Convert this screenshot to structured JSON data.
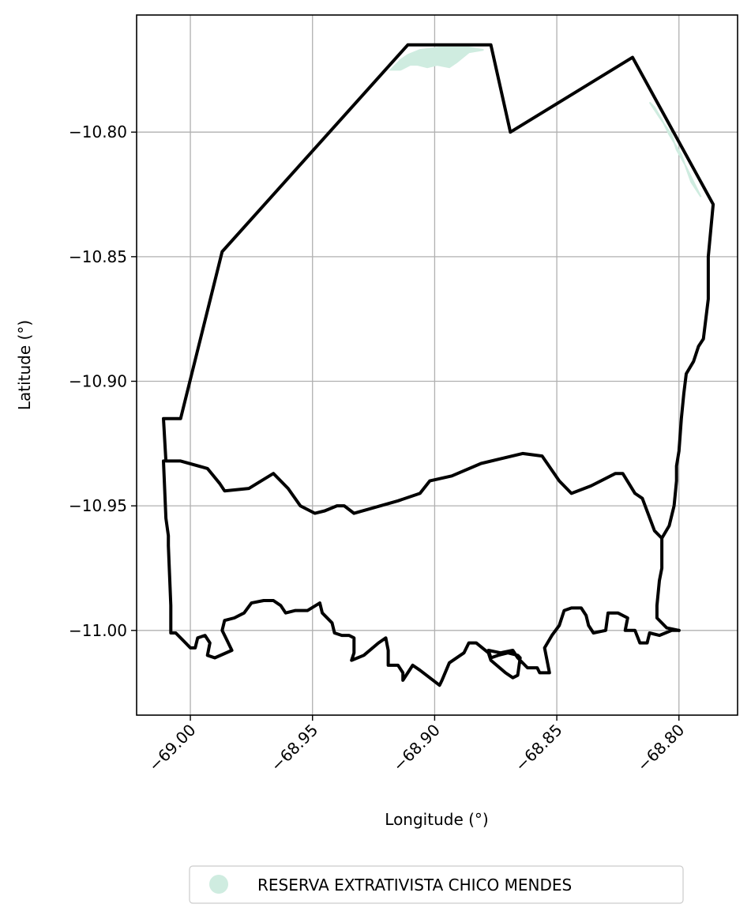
{
  "chart_data": {
    "type": "map",
    "xlabel": "Longitude (°)",
    "ylabel": "Latitude (°)",
    "xlim": [
      -69.022,
      -68.776
    ],
    "ylim": [
      -11.034,
      -10.753
    ],
    "xticks": [
      {
        "value": -69.0,
        "label": "−69.00"
      },
      {
        "value": -68.95,
        "label": "−68.95"
      },
      {
        "value": -68.9,
        "label": "−68.90"
      },
      {
        "value": -68.85,
        "label": "−68.85"
      },
      {
        "value": -68.8,
        "label": "−68.80"
      }
    ],
    "yticks": [
      {
        "value": -10.8,
        "label": "−10.80"
      },
      {
        "value": -10.85,
        "label": "−10.85"
      },
      {
        "value": -10.9,
        "label": "−10.90"
      },
      {
        "value": -10.95,
        "label": "−10.95"
      },
      {
        "value": -11.0,
        "label": "−11.00"
      }
    ],
    "grid": true,
    "legend": {
      "placement": "bottom-center",
      "entries": [
        {
          "label": "RESERVA EXTRATIVISTA CHICO MENDES",
          "color": "#cfece0"
        }
      ]
    },
    "colors": {
      "outline": "#000000",
      "reserve_fill": "#cfece0",
      "grid": "#b0b0b0"
    },
    "outer_boundary": [
      [
        -69.011,
        -10.915
      ],
      [
        -69.004,
        -10.915
      ],
      [
        -68.987,
        -10.848
      ],
      [
        -68.911,
        -10.765
      ],
      [
        -68.877,
        -10.765
      ],
      [
        -68.869,
        -10.8
      ],
      [
        -68.819,
        -10.77
      ],
      [
        -68.786,
        -10.829
      ],
      [
        -68.788,
        -10.85
      ],
      [
        -68.788,
        -10.867
      ],
      [
        -68.79,
        -10.883
      ],
      [
        -68.792,
        -10.886
      ],
      [
        -68.794,
        -10.892
      ],
      [
        -68.797,
        -10.897
      ],
      [
        -68.798,
        -10.905
      ],
      [
        -68.799,
        -10.915
      ],
      [
        -68.8,
        -10.928
      ],
      [
        -68.801,
        -10.934
      ],
      [
        -68.801,
        -10.94
      ],
      [
        -68.802,
        -10.95
      ],
      [
        -68.804,
        -10.958
      ],
      [
        -68.807,
        -10.963
      ],
      [
        -68.81,
        -10.96
      ],
      [
        -68.815,
        -10.947
      ],
      [
        -68.818,
        -10.945
      ],
      [
        -68.823,
        -10.937
      ],
      [
        -68.826,
        -10.937
      ],
      [
        -68.836,
        -10.942
      ],
      [
        -68.844,
        -10.945
      ],
      [
        -68.849,
        -10.94
      ],
      [
        -68.856,
        -10.93
      ],
      [
        -68.864,
        -10.929
      ],
      [
        -68.881,
        -10.933
      ],
      [
        -68.893,
        -10.938
      ],
      [
        -68.902,
        -10.94
      ],
      [
        -68.906,
        -10.945
      ],
      [
        -68.915,
        -10.948
      ],
      [
        -68.933,
        -10.953
      ],
      [
        -68.937,
        -10.95
      ],
      [
        -68.94,
        -10.95
      ],
      [
        -68.945,
        -10.952
      ],
      [
        -68.949,
        -10.953
      ],
      [
        -68.955,
        -10.95
      ],
      [
        -68.96,
        -10.943
      ],
      [
        -68.966,
        -10.937
      ],
      [
        -68.971,
        -10.94
      ],
      [
        -68.976,
        -10.943
      ],
      [
        -68.986,
        -10.944
      ],
      [
        -68.988,
        -10.941
      ],
      [
        -68.993,
        -10.935
      ],
      [
        -69.004,
        -10.932
      ],
      [
        -69.01,
        -10.932
      ]
    ],
    "lower_boundary": [
      [
        -69.011,
        -10.932
      ],
      [
        -69.01,
        -10.955
      ],
      [
        -69.009,
        -10.962
      ],
      [
        -69.009,
        -10.966
      ],
      [
        -69.008,
        -10.99
      ],
      [
        -69.008,
        -11.001
      ],
      [
        -69.006,
        -11.001
      ],
      [
        -69.003,
        -11.004
      ],
      [
        -69.0,
        -11.007
      ],
      [
        -68.998,
        -11.007
      ],
      [
        -68.997,
        -11.003
      ],
      [
        -68.994,
        -11.002
      ],
      [
        -68.992,
        -11.005
      ],
      [
        -68.993,
        -11.01
      ],
      [
        -68.99,
        -11.011
      ],
      [
        -68.983,
        -11.008
      ],
      [
        -68.985,
        -11.004
      ],
      [
        -68.987,
        -11.0
      ],
      [
        -68.986,
        -10.996
      ],
      [
        -68.982,
        -10.995
      ],
      [
        -68.978,
        -10.993
      ],
      [
        -68.975,
        -10.989
      ],
      [
        -68.97,
        -10.988
      ],
      [
        -68.966,
        -10.988
      ],
      [
        -68.963,
        -10.99
      ],
      [
        -68.961,
        -10.993
      ],
      [
        -68.957,
        -10.992
      ],
      [
        -68.952,
        -10.992
      ],
      [
        -68.947,
        -10.989
      ],
      [
        -68.946,
        -10.993
      ],
      [
        -68.942,
        -10.997
      ],
      [
        -68.941,
        -11.001
      ],
      [
        -68.938,
        -11.002
      ],
      [
        -68.935,
        -11.002
      ],
      [
        -68.933,
        -11.003
      ],
      [
        -68.933,
        -11.009
      ],
      [
        -68.934,
        -11.012
      ],
      [
        -68.929,
        -11.01
      ],
      [
        -68.923,
        -11.005
      ],
      [
        -68.92,
        -11.003
      ],
      [
        -68.919,
        -11.008
      ],
      [
        -68.919,
        -11.014
      ],
      [
        -68.915,
        -11.014
      ],
      [
        -68.913,
        -11.017
      ],
      [
        -68.913,
        -11.02
      ],
      [
        -68.909,
        -11.014
      ],
      [
        -68.906,
        -11.016
      ],
      [
        -68.902,
        -11.019
      ],
      [
        -68.898,
        -11.022
      ],
      [
        -68.897,
        -11.02
      ],
      [
        -68.894,
        -11.013
      ],
      [
        -68.888,
        -11.009
      ],
      [
        -68.886,
        -11.005
      ],
      [
        -68.883,
        -11.005
      ],
      [
        -68.878,
        -11.009
      ],
      [
        -68.877,
        -11.012
      ],
      [
        -68.871,
        -11.017
      ],
      [
        -68.868,
        -11.019
      ],
      [
        -68.866,
        -11.018
      ],
      [
        -68.865,
        -11.011
      ],
      [
        -68.866,
        -11.01
      ],
      [
        -68.87,
        -11.009
      ],
      [
        -68.874,
        -11.01
      ],
      [
        -68.877,
        -11.011
      ],
      [
        -68.878,
        -11.008
      ],
      [
        -68.873,
        -11.009
      ],
      [
        -68.868,
        -11.008
      ],
      [
        -68.866,
        -11.011
      ],
      [
        -68.862,
        -11.015
      ],
      [
        -68.858,
        -11.015
      ],
      [
        -68.857,
        -11.017
      ],
      [
        -68.853,
        -11.017
      ],
      [
        -68.854,
        -11.012
      ],
      [
        -68.855,
        -11.007
      ],
      [
        -68.852,
        -11.002
      ],
      [
        -68.849,
        -10.998
      ],
      [
        -68.847,
        -10.992
      ],
      [
        -68.844,
        -10.991
      ],
      [
        -68.84,
        -10.991
      ],
      [
        -68.838,
        -10.994
      ],
      [
        -68.837,
        -10.998
      ],
      [
        -68.835,
        -11.001
      ],
      [
        -68.83,
        -11.0
      ],
      [
        -68.829,
        -10.993
      ],
      [
        -68.825,
        -10.993
      ],
      [
        -68.821,
        -10.995
      ],
      [
        -68.822,
        -11.0
      ],
      [
        -68.818,
        -11.0
      ],
      [
        -68.816,
        -11.005
      ],
      [
        -68.813,
        -11.005
      ],
      [
        -68.812,
        -11.001
      ],
      [
        -68.808,
        -11.002
      ],
      [
        -68.803,
        -11.0
      ],
      [
        -68.8,
        -11.0
      ]
    ],
    "east_edge": [
      [
        -68.807,
        -10.963
      ],
      [
        -68.807,
        -10.975
      ],
      [
        -68.808,
        -10.98
      ],
      [
        -68.809,
        -10.99
      ],
      [
        -68.809,
        -10.995
      ],
      [
        -68.805,
        -10.999
      ],
      [
        -68.8,
        -11.0
      ]
    ],
    "reserve_patches": [
      [
        [
          -68.918,
          -10.775
        ],
        [
          -68.914,
          -10.771
        ],
        [
          -68.911,
          -10.769
        ],
        [
          -68.906,
          -10.767
        ],
        [
          -68.898,
          -10.766
        ],
        [
          -68.886,
          -10.766
        ],
        [
          -68.88,
          -10.767
        ],
        [
          -68.886,
          -10.768
        ],
        [
          -68.891,
          -10.772
        ],
        [
          -68.894,
          -10.774
        ],
        [
          -68.899,
          -10.773
        ],
        [
          -68.903,
          -10.774
        ],
        [
          -68.907,
          -10.773
        ],
        [
          -68.91,
          -10.773
        ],
        [
          -68.914,
          -10.775
        ]
      ],
      [
        [
          -68.812,
          -10.788
        ],
        [
          -68.808,
          -10.794
        ],
        [
          -68.803,
          -10.801
        ],
        [
          -68.801,
          -10.807
        ],
        [
          -68.797,
          -10.814
        ],
        [
          -68.794,
          -10.82
        ],
        [
          -68.791,
          -10.826
        ],
        [
          -68.795,
          -10.82
        ],
        [
          -68.799,
          -10.809
        ],
        [
          -68.804,
          -10.801
        ],
        [
          -68.807,
          -10.795
        ],
        [
          -68.81,
          -10.79
        ]
      ]
    ]
  }
}
